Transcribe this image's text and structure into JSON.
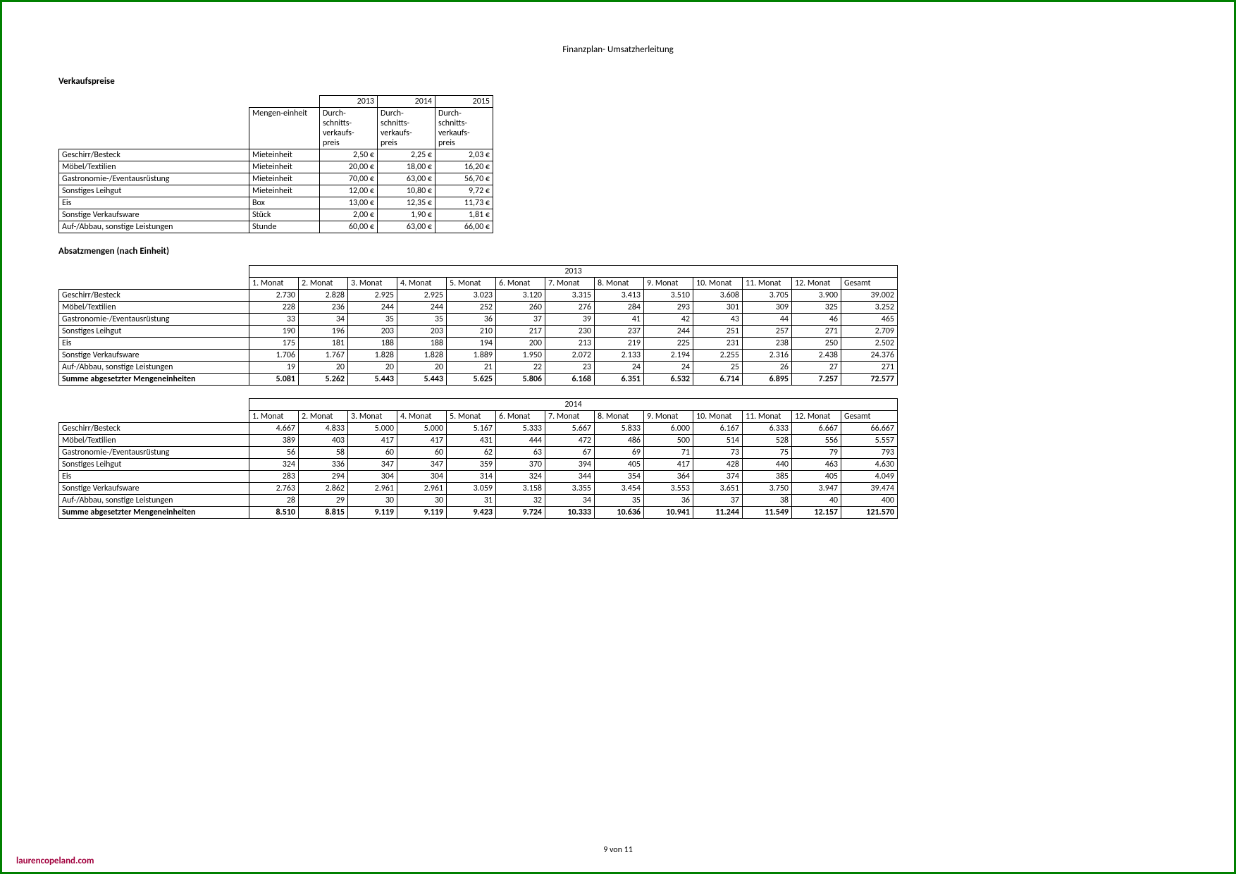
{
  "page": {
    "title": "Finanzplan- Umsatzherleitung",
    "pagination": "9 von 11",
    "brand": "laurencopeland.com"
  },
  "prices": {
    "heading": "Verkaufspreise",
    "unit_header": "Mengen-einheit",
    "years": [
      "2013",
      "2014",
      "2015"
    ],
    "sub_header": "Durch-\nschnitts-\nverkaufs-\npreis",
    "rows": [
      {
        "label": "Geschirr/Besteck",
        "unit": "Mieteinheit",
        "p": [
          "2,50 €",
          "2,25 €",
          "2,03 €"
        ]
      },
      {
        "label": "Möbel/Textilien",
        "unit": "Mieteinheit",
        "p": [
          "20,00 €",
          "18,00 €",
          "16,20 €"
        ]
      },
      {
        "label": "Gastronomie-/Eventausrüstung",
        "unit": "Mieteinheit",
        "p": [
          "70,00 €",
          "63,00 €",
          "56,70 €"
        ]
      },
      {
        "label": "Sonstiges Leihgut",
        "unit": "Mieteinheit",
        "p": [
          "12,00 €",
          "10,80 €",
          "9,72 €"
        ]
      },
      {
        "label": "Eis",
        "unit": "Box",
        "p": [
          "13,00 €",
          "12,35 €",
          "11,73 €"
        ]
      },
      {
        "label": "Sonstige Verkaufsware",
        "unit": "Stück",
        "p": [
          "2,00 €",
          "1,90 €",
          "1,81 €"
        ]
      },
      {
        "label": "Auf-/Abbau, sonstige Leistungen",
        "unit": "Stunde",
        "p": [
          "60,00 €",
          "63,00 €",
          "66,00 €"
        ]
      }
    ]
  },
  "volumes": {
    "heading": "Absatzmengen (nach Einheit)",
    "months": [
      "1. Monat",
      "2. Monat",
      "3. Monat",
      "4. Monat",
      "5. Monat",
      "6. Monat",
      "7. Monat",
      "8. Monat",
      "9. Monat",
      "10. Monat",
      "11. Monat",
      "12. Monat"
    ],
    "total_label": "Gesamt",
    "sum_label": "Summe abgesetzter Mengeneinheiten",
    "years": [
      {
        "year": "2013",
        "rows": [
          {
            "label": "Geschirr/Besteck",
            "v": [
              "2.730",
              "2.828",
              "2.925",
              "2.925",
              "3.023",
              "3.120",
              "3.315",
              "3.413",
              "3.510",
              "3.608",
              "3.705",
              "3.900"
            ],
            "t": "39.002"
          },
          {
            "label": "Möbel/Textilien",
            "v": [
              "228",
              "236",
              "244",
              "244",
              "252",
              "260",
              "276",
              "284",
              "293",
              "301",
              "309",
              "325"
            ],
            "t": "3.252"
          },
          {
            "label": "Gastronomie-/Eventausrüstung",
            "v": [
              "33",
              "34",
              "35",
              "35",
              "36",
              "37",
              "39",
              "41",
              "42",
              "43",
              "44",
              "46"
            ],
            "t": "465"
          },
          {
            "label": "Sonstiges Leihgut",
            "v": [
              "190",
              "196",
              "203",
              "203",
              "210",
              "217",
              "230",
              "237",
              "244",
              "251",
              "257",
              "271"
            ],
            "t": "2.709"
          },
          {
            "label": "Eis",
            "v": [
              "175",
              "181",
              "188",
              "188",
              "194",
              "200",
              "213",
              "219",
              "225",
              "231",
              "238",
              "250"
            ],
            "t": "2.502"
          },
          {
            "label": "Sonstige Verkaufsware",
            "v": [
              "1.706",
              "1.767",
              "1.828",
              "1.828",
              "1.889",
              "1.950",
              "2.072",
              "2.133",
              "2.194",
              "2.255",
              "2.316",
              "2.438"
            ],
            "t": "24.376"
          },
          {
            "label": "Auf-/Abbau, sonstige Leistungen",
            "v": [
              "19",
              "20",
              "20",
              "20",
              "21",
              "22",
              "23",
              "24",
              "24",
              "25",
              "26",
              "27"
            ],
            "t": "271"
          }
        ],
        "sum": {
          "v": [
            "5.081",
            "5.262",
            "5.443",
            "5.443",
            "5.625",
            "5.806",
            "6.168",
            "6.351",
            "6.532",
            "6.714",
            "6.895",
            "7.257"
          ],
          "t": "72.577"
        }
      },
      {
        "year": "2014",
        "rows": [
          {
            "label": "Geschirr/Besteck",
            "v": [
              "4.667",
              "4.833",
              "5.000",
              "5.000",
              "5.167",
              "5.333",
              "5.667",
              "5.833",
              "6.000",
              "6.167",
              "6.333",
              "6.667"
            ],
            "t": "66.667"
          },
          {
            "label": "Möbel/Textilien",
            "v": [
              "389",
              "403",
              "417",
              "417",
              "431",
              "444",
              "472",
              "486",
              "500",
              "514",
              "528",
              "556"
            ],
            "t": "5.557"
          },
          {
            "label": "Gastronomie-/Eventausrüstung",
            "v": [
              "56",
              "58",
              "60",
              "60",
              "62",
              "63",
              "67",
              "69",
              "71",
              "73",
              "75",
              "79"
            ],
            "t": "793"
          },
          {
            "label": "Sonstiges Leihgut",
            "v": [
              "324",
              "336",
              "347",
              "347",
              "359",
              "370",
              "394",
              "405",
              "417",
              "428",
              "440",
              "463"
            ],
            "t": "4.630"
          },
          {
            "label": "Eis",
            "v": [
              "283",
              "294",
              "304",
              "304",
              "314",
              "324",
              "344",
              "354",
              "364",
              "374",
              "385",
              "405"
            ],
            "t": "4.049"
          },
          {
            "label": "Sonstige Verkaufsware",
            "v": [
              "2.763",
              "2.862",
              "2.961",
              "2.961",
              "3.059",
              "3.158",
              "3.355",
              "3.454",
              "3.553",
              "3.651",
              "3.750",
              "3.947"
            ],
            "t": "39.474"
          },
          {
            "label": "Auf-/Abbau, sonstige Leistungen",
            "v": [
              "28",
              "29",
              "30",
              "30",
              "31",
              "32",
              "34",
              "35",
              "36",
              "37",
              "38",
              "40"
            ],
            "t": "400"
          }
        ],
        "sum": {
          "v": [
            "8.510",
            "8.815",
            "9.119",
            "9.119",
            "9.423",
            "9.724",
            "10.333",
            "10.636",
            "10.941",
            "11.244",
            "11.549",
            "12.157"
          ],
          "t": "121.570"
        }
      }
    ]
  },
  "style": {
    "border_color": "#000000",
    "page_border": "#008000",
    "font_family": "Calibri",
    "font_size_pt": 10,
    "brand_color": "#a1003d"
  }
}
